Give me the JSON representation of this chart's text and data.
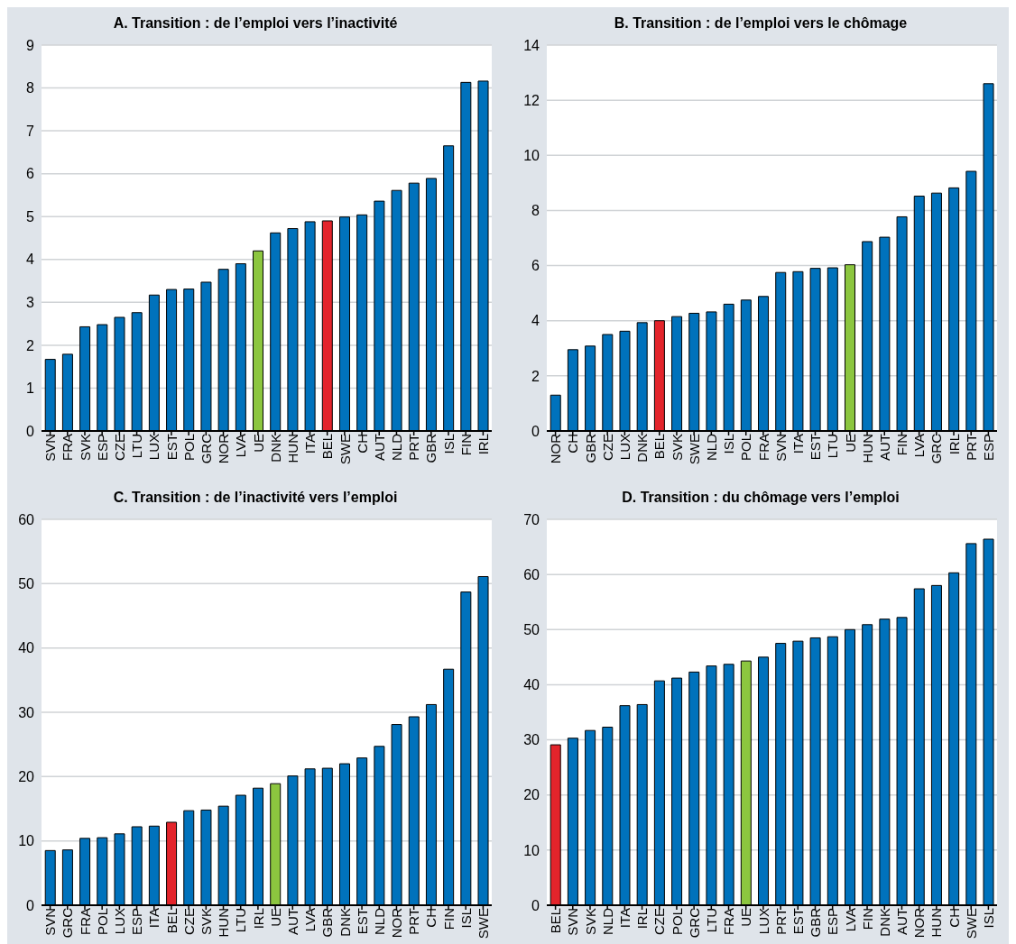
{
  "chart_data": [
    {
      "type": "bar",
      "title": "A. Transition : de l’emploi vers l’inactivité",
      "categories": [
        "SVN",
        "FRA",
        "SVK",
        "ESP",
        "CZE",
        "LTU",
        "LUX",
        "EST",
        "POL",
        "GRC",
        "NOR",
        "LVA",
        "UE",
        "DNK",
        "HUN",
        "ITA",
        "BEL",
        "SWE",
        "CH",
        "AUT",
        "NLD",
        "PRT",
        "GBR",
        "ISL",
        "FIN",
        "IRL"
      ],
      "values": [
        1.67,
        1.79,
        2.43,
        2.48,
        2.65,
        2.76,
        3.17,
        3.3,
        3.31,
        3.47,
        3.77,
        3.9,
        4.2,
        4.62,
        4.72,
        4.88,
        4.9,
        4.99,
        5.04,
        5.36,
        5.61,
        5.78,
        5.89,
        6.65,
        8.13,
        8.16
      ],
      "colors": [
        "#0072bc",
        "#0072bc",
        "#0072bc",
        "#0072bc",
        "#0072bc",
        "#0072bc",
        "#0072bc",
        "#0072bc",
        "#0072bc",
        "#0072bc",
        "#0072bc",
        "#0072bc",
        "#8cc63f",
        "#0072bc",
        "#0072bc",
        "#0072bc",
        "#e3242b",
        "#0072bc",
        "#0072bc",
        "#0072bc",
        "#0072bc",
        "#0072bc",
        "#0072bc",
        "#0072bc",
        "#0072bc",
        "#0072bc"
      ],
      "ylim": [
        0,
        9
      ],
      "yticks": [
        0,
        1,
        2,
        3,
        4,
        5,
        6,
        7,
        8,
        9
      ],
      "grid": "y"
    },
    {
      "type": "bar",
      "title": "B. Transition : de l’emploi vers le chômage",
      "categories": [
        "NOR",
        "CH",
        "GBR",
        "CZE",
        "LUX",
        "DNK",
        "BEL",
        "SVK",
        "SWE",
        "NLD",
        "ISL",
        "POL",
        "FRA",
        "SVN",
        "ITA",
        "EST",
        "LTU",
        "UE",
        "HUN",
        "AUT",
        "FIN",
        "LVA",
        "GRC",
        "IRL",
        "PRT",
        "ESP"
      ],
      "values": [
        1.3,
        2.95,
        3.08,
        3.5,
        3.62,
        3.93,
        4.0,
        4.15,
        4.27,
        4.32,
        4.6,
        4.75,
        4.88,
        5.75,
        5.78,
        5.9,
        5.92,
        6.03,
        6.87,
        7.03,
        7.77,
        8.52,
        8.63,
        8.82,
        9.42,
        12.6
      ],
      "colors": [
        "#0072bc",
        "#0072bc",
        "#0072bc",
        "#0072bc",
        "#0072bc",
        "#0072bc",
        "#e3242b",
        "#0072bc",
        "#0072bc",
        "#0072bc",
        "#0072bc",
        "#0072bc",
        "#0072bc",
        "#0072bc",
        "#0072bc",
        "#0072bc",
        "#0072bc",
        "#8cc63f",
        "#0072bc",
        "#0072bc",
        "#0072bc",
        "#0072bc",
        "#0072bc",
        "#0072bc",
        "#0072bc",
        "#0072bc"
      ],
      "ylim": [
        0,
        14
      ],
      "yticks": [
        0,
        2,
        4,
        6,
        8,
        10,
        12,
        14
      ],
      "grid": "y"
    },
    {
      "type": "bar",
      "title": "C. Transition : de l’inactivité vers l’emploi",
      "categories": [
        "SVN",
        "GRC",
        "FRA",
        "POL",
        "LUX",
        "ESP",
        "ITA",
        "BEL",
        "CZE",
        "SVK",
        "HUN",
        "LTU",
        "IRL",
        "UE",
        "AUT",
        "LVA",
        "GBR",
        "DNK",
        "EST",
        "NLD",
        "NOR",
        "PRT",
        "CH",
        "FIN",
        "ISL",
        "SWE"
      ],
      "values": [
        8.5,
        8.6,
        10.4,
        10.5,
        11.1,
        12.2,
        12.3,
        12.9,
        14.7,
        14.8,
        15.4,
        17.1,
        18.2,
        18.9,
        20.1,
        21.2,
        21.3,
        22.0,
        22.9,
        24.7,
        28.1,
        29.3,
        31.2,
        36.7,
        48.7,
        51.1
      ],
      "colors": [
        "#0072bc",
        "#0072bc",
        "#0072bc",
        "#0072bc",
        "#0072bc",
        "#0072bc",
        "#0072bc",
        "#e3242b",
        "#0072bc",
        "#0072bc",
        "#0072bc",
        "#0072bc",
        "#0072bc",
        "#8cc63f",
        "#0072bc",
        "#0072bc",
        "#0072bc",
        "#0072bc",
        "#0072bc",
        "#0072bc",
        "#0072bc",
        "#0072bc",
        "#0072bc",
        "#0072bc",
        "#0072bc",
        "#0072bc"
      ],
      "ylim": [
        0,
        60
      ],
      "yticks": [
        0,
        10,
        20,
        30,
        40,
        50,
        60
      ],
      "grid": "y"
    },
    {
      "type": "bar",
      "title": "D. Transition : du chômage vers l’emploi",
      "categories": [
        "BEL",
        "SVN",
        "SVK",
        "NLD",
        "ITA",
        "IRL",
        "CZE",
        "POL",
        "GRC",
        "LTU",
        "FRA",
        "UE",
        "LUX",
        "PRT",
        "EST",
        "GBR",
        "ESP",
        "LVA",
        "FIN",
        "DNK",
        "AUT",
        "NOR",
        "HUN",
        "CH",
        "SWE",
        "ISL"
      ],
      "values": [
        29.1,
        30.3,
        31.7,
        32.3,
        36.2,
        36.4,
        40.7,
        41.2,
        42.3,
        43.4,
        43.7,
        44.3,
        45.0,
        47.5,
        47.9,
        48.5,
        48.7,
        50.0,
        50.9,
        51.9,
        52.2,
        57.4,
        58.0,
        60.3,
        65.6,
        66.4
      ],
      "colors": [
        "#e3242b",
        "#0072bc",
        "#0072bc",
        "#0072bc",
        "#0072bc",
        "#0072bc",
        "#0072bc",
        "#0072bc",
        "#0072bc",
        "#0072bc",
        "#0072bc",
        "#8cc63f",
        "#0072bc",
        "#0072bc",
        "#0072bc",
        "#0072bc",
        "#0072bc",
        "#0072bc",
        "#0072bc",
        "#0072bc",
        "#0072bc",
        "#0072bc",
        "#0072bc",
        "#0072bc",
        "#0072bc",
        "#0072bc"
      ],
      "ylim": [
        0,
        70
      ],
      "yticks": [
        0,
        10,
        20,
        30,
        40,
        50,
        60,
        70
      ],
      "grid": "y"
    }
  ]
}
